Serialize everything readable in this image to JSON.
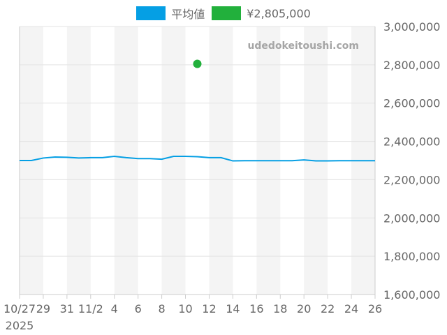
{
  "legend": {
    "items": [
      {
        "label": "平均値",
        "color": "#059fe4"
      },
      {
        "label": "¥2,805,000",
        "color": "#22b03c"
      }
    ]
  },
  "watermark": "udedokeitoushi.com",
  "chart_data": {
    "type": "line",
    "title": "",
    "xlabel": "",
    "ylabel": "",
    "ylim": [
      1600000,
      3000000
    ],
    "y_ticks": [
      "3,000,000",
      "2,800,000",
      "2,600,000",
      "2,400,000",
      "2,200,000",
      "2,000,000",
      "1,800,000",
      "1,600,000"
    ],
    "x_ticks": [
      "10/27",
      "29",
      "31",
      "11/2",
      "4",
      "6",
      "8",
      "10",
      "12",
      "14",
      "16",
      "18",
      "20",
      "22",
      "24",
      "26"
    ],
    "x_year_label": "2025",
    "x": [
      "10/27",
      "10/28",
      "10/29",
      "10/30",
      "10/31",
      "11/1",
      "11/2",
      "11/3",
      "11/4",
      "11/5",
      "11/6",
      "11/7",
      "11/8",
      "11/9",
      "11/10",
      "11/11",
      "11/12",
      "11/13",
      "11/14",
      "11/15",
      "11/16",
      "11/17",
      "11/18",
      "11/19",
      "11/20",
      "11/21",
      "11/22",
      "11/23",
      "11/24",
      "11/25",
      "11/26"
    ],
    "series": [
      {
        "name": "平均値",
        "type": "line",
        "color": "#059fe4",
        "values": [
          2300000,
          2300000,
          2313000,
          2318000,
          2317000,
          2313000,
          2315000,
          2315000,
          2322000,
          2315000,
          2310000,
          2310000,
          2307000,
          2322000,
          2322000,
          2320000,
          2315000,
          2315000,
          2298000,
          2299000,
          2299000,
          2299000,
          2299000,
          2299000,
          2303000,
          2298000,
          2298000,
          2299000,
          2299000,
          2299000,
          2299000
        ]
      },
      {
        "name": "¥2,805,000",
        "type": "scatter",
        "color": "#22b03c",
        "points": [
          {
            "x": "11/11",
            "y": 2805000
          }
        ]
      }
    ],
    "grid": true,
    "legend_position": "top"
  }
}
